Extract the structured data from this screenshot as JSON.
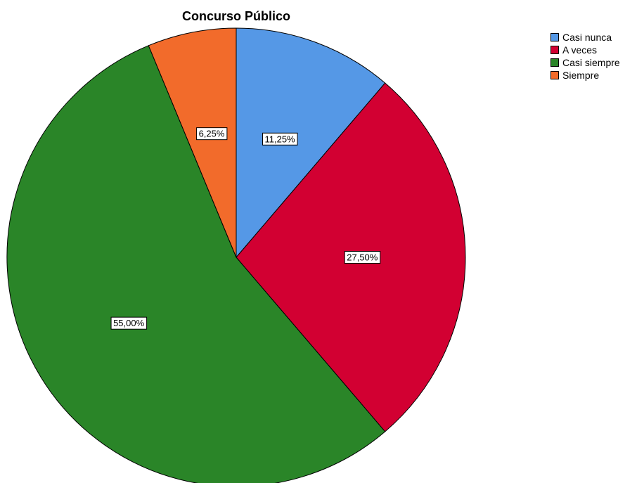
{
  "chart_data": {
    "type": "pie",
    "title": "Concurso Público",
    "start_angle_deg": 0,
    "direction": "clockwise",
    "legend_position": "top-right",
    "slices": [
      {
        "label": "Casi nunca",
        "value": 11.25,
        "value_label": "11,25%",
        "color": "#5598e6"
      },
      {
        "label": "A veces",
        "value": 27.5,
        "value_label": "27,50%",
        "color": "#d20032"
      },
      {
        "label": "Casi siempre",
        "value": 55.0,
        "value_label": "55,00%",
        "color": "#2a8528"
      },
      {
        "label": "Siempre",
        "value": 6.25,
        "value_label": "6,25%",
        "color": "#f26b2b"
      }
    ]
  }
}
